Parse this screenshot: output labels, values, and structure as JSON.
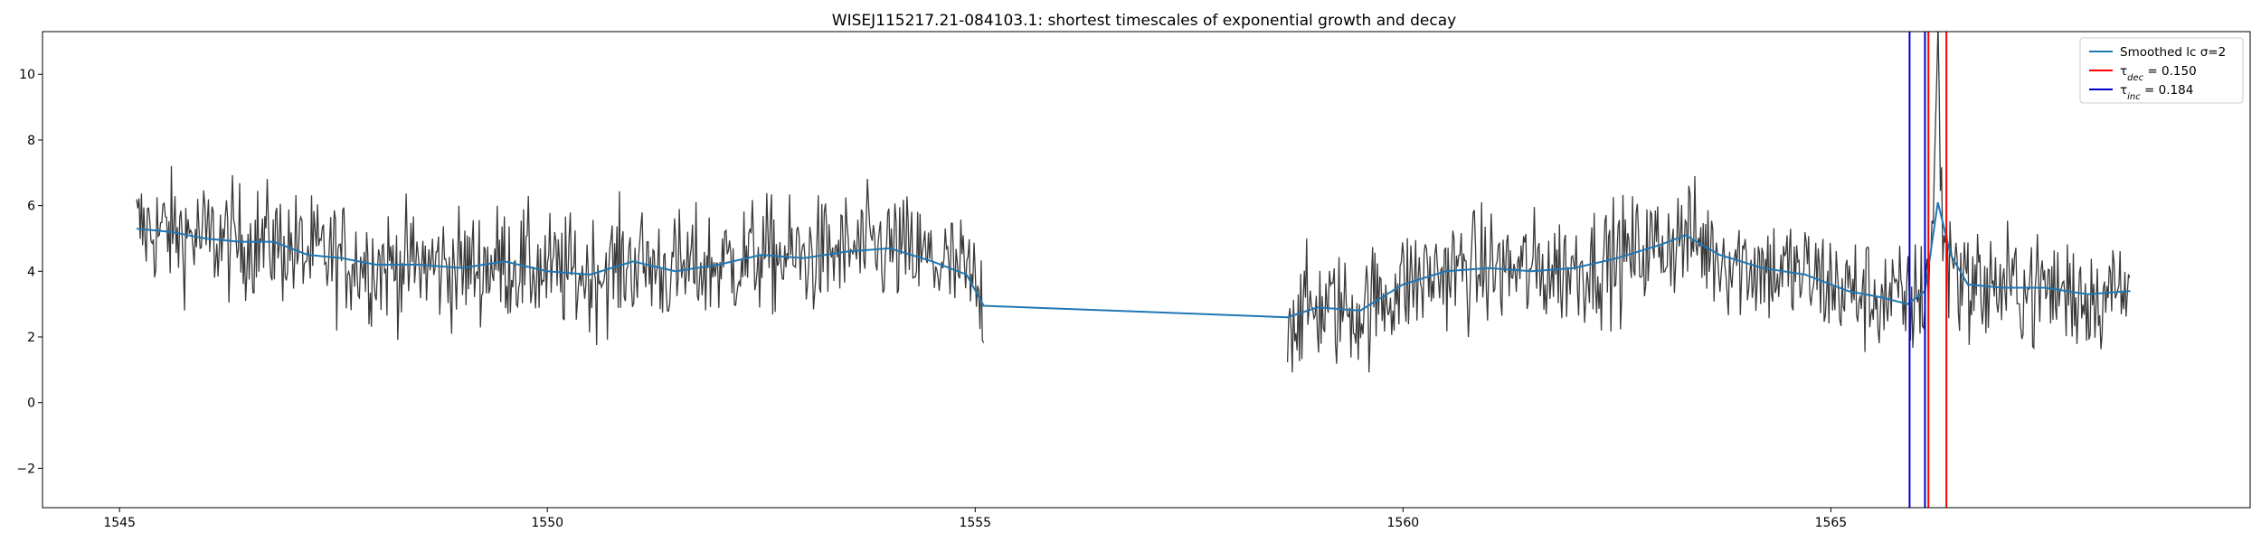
{
  "chart_data": {
    "type": "line",
    "title": "WISEJ115217.21-084103.1: shortest timescales of exponential growth and decay",
    "xlabel": "",
    "ylabel": "",
    "xlim": [
      1544.1,
      1569.9
    ],
    "ylim": [
      -3.2,
      11.3
    ],
    "xticks": [
      1545,
      1550,
      1555,
      1560,
      1565
    ],
    "yticks": [
      -2,
      0,
      2,
      4,
      6,
      8,
      10
    ],
    "grid": false,
    "legend_position": "top-right",
    "legend": [
      {
        "label": "Smoothed lc σ=2",
        "color": "#1f77b4",
        "kind": "smoothed"
      },
      {
        "label_main": "τ",
        "label_sub": "dec",
        "label_rest": " = 0.150",
        "color": "#ff0000",
        "kind": "tau_dec"
      },
      {
        "label_main": "τ",
        "label_sub": "inc",
        "label_rest": " = 0.184",
        "color": "#0000cd",
        "kind": "tau_inc"
      }
    ],
    "raw_color": "#3a3a3a",
    "smooth_color": "#1f77b4",
    "segments": [
      {
        "start": 1545.2,
        "end": 1555.1,
        "step": 0.014
      },
      {
        "start": 1558.65,
        "end": 1568.5,
        "step": 0.014
      }
    ],
    "smoothed_knots": [
      [
        1545.2,
        5.3
      ],
      [
        1545.6,
        5.2
      ],
      [
        1546.0,
        5.0
      ],
      [
        1546.4,
        4.9
      ],
      [
        1546.8,
        4.9
      ],
      [
        1547.2,
        4.5
      ],
      [
        1547.6,
        4.4
      ],
      [
        1548.0,
        4.2
      ],
      [
        1548.5,
        4.2
      ],
      [
        1549.0,
        4.1
      ],
      [
        1549.5,
        4.3
      ],
      [
        1550.0,
        4.0
      ],
      [
        1550.5,
        3.9
      ],
      [
        1551.0,
        4.3
      ],
      [
        1551.5,
        4.0
      ],
      [
        1552.0,
        4.2
      ],
      [
        1552.5,
        4.5
      ],
      [
        1553.0,
        4.4
      ],
      [
        1553.5,
        4.6
      ],
      [
        1554.0,
        4.7
      ],
      [
        1554.5,
        4.3
      ],
      [
        1554.9,
        3.9
      ],
      [
        1555.1,
        2.95
      ],
      [
        1558.65,
        2.6
      ],
      [
        1559.0,
        2.9
      ],
      [
        1559.5,
        2.8
      ],
      [
        1560.0,
        3.6
      ],
      [
        1560.5,
        4.0
      ],
      [
        1561.0,
        4.1
      ],
      [
        1561.5,
        4.0
      ],
      [
        1562.0,
        4.1
      ],
      [
        1562.5,
        4.4
      ],
      [
        1563.0,
        4.8
      ],
      [
        1563.3,
        5.1
      ],
      [
        1563.7,
        4.5
      ],
      [
        1564.2,
        4.1
      ],
      [
        1564.7,
        3.9
      ],
      [
        1565.2,
        3.4
      ],
      [
        1565.6,
        3.2
      ],
      [
        1565.9,
        3.0
      ],
      [
        1566.1,
        3.4
      ],
      [
        1566.25,
        6.1
      ],
      [
        1566.4,
        4.5
      ],
      [
        1566.6,
        3.6
      ],
      [
        1567.0,
        3.5
      ],
      [
        1567.5,
        3.5
      ],
      [
        1568.0,
        3.3
      ],
      [
        1568.5,
        3.4
      ]
    ],
    "flare": {
      "center": 1566.25,
      "peak": 10.8,
      "width": 0.06
    },
    "noise_amplitude": 1.6,
    "vlines": [
      {
        "x": 1565.92,
        "color": "#0000cd"
      },
      {
        "x": 1566.1,
        "color": "#0000cd"
      },
      {
        "x": 1566.14,
        "color": "#ff0000"
      },
      {
        "x": 1566.35,
        "color": "#ff0000"
      }
    ]
  }
}
